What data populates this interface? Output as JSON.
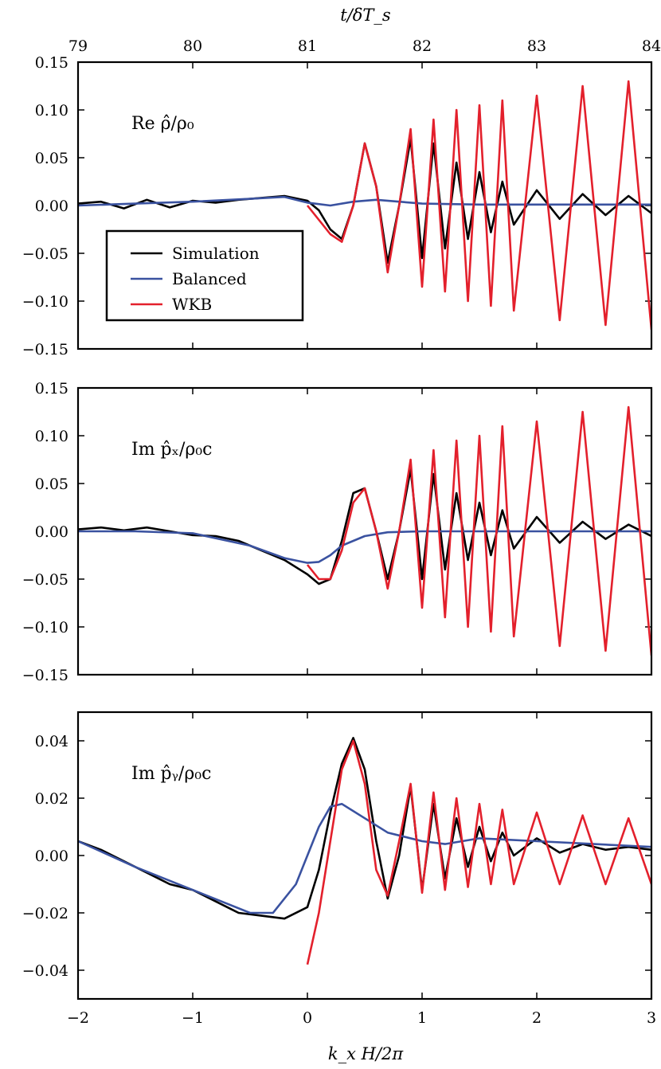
{
  "figure": {
    "top_axis_label": "t/δT_s",
    "bottom_axis_label": "k_x H/2π"
  },
  "chart_data": [
    {
      "type": "line",
      "panel_label": "Re ρ̂/ρ₀",
      "x_ticks": [
        "−2",
        "−1",
        "0",
        "1",
        "2",
        "3"
      ],
      "x_tick_values": [
        -2,
        -1,
        0,
        1,
        2,
        3
      ],
      "top_x_ticks": [
        "79",
        "80",
        "81",
        "82",
        "83",
        "84"
      ],
      "top_x_tick_values": [
        79,
        80,
        81,
        82,
        83,
        84
      ],
      "y_ticks": [
        "0.15",
        "0.10",
        "0.05",
        "0.00",
        "−0.05",
        "−0.10",
        "−0.15"
      ],
      "y_tick_values": [
        0.15,
        0.1,
        0.05,
        0.0,
        -0.05,
        -0.1,
        -0.15
      ],
      "xlim": [
        -2,
        3
      ],
      "ylim": [
        -0.15,
        0.15
      ],
      "legend": {
        "placement": "left",
        "entries": [
          {
            "label": "Simulation",
            "color": "#000000"
          },
          {
            "label": "Balanced",
            "color": "#3a52a0"
          },
          {
            "label": "WKB",
            "color": "#e3202c"
          }
        ]
      },
      "series": [
        {
          "name": "Simulation",
          "color": "#000000",
          "x": [
            -2.0,
            -1.8,
            -1.6,
            -1.4,
            -1.2,
            -1.0,
            -0.8,
            -0.6,
            -0.4,
            -0.2,
            0.0,
            0.1,
            0.2,
            0.3,
            0.4,
            0.5,
            0.6,
            0.7,
            0.8,
            0.9,
            1.0,
            1.1,
            1.2,
            1.3,
            1.4,
            1.5,
            1.6,
            1.7,
            1.8,
            2.0,
            2.2,
            2.4,
            2.6,
            2.8,
            3.0
          ],
          "y": [
            0.002,
            0.004,
            -0.003,
            0.006,
            -0.002,
            0.005,
            0.003,
            0.006,
            0.008,
            0.01,
            0.005,
            -0.005,
            -0.025,
            -0.035,
            0.0,
            0.065,
            0.02,
            -0.06,
            0.0,
            0.07,
            -0.055,
            0.065,
            -0.045,
            0.045,
            -0.035,
            0.035,
            -0.028,
            0.025,
            -0.02,
            0.016,
            -0.014,
            0.012,
            -0.01,
            0.01,
            -0.008
          ]
        },
        {
          "name": "Balanced",
          "color": "#3a52a0",
          "x": [
            -2.0,
            -1.5,
            -1.0,
            -0.5,
            -0.2,
            0.0,
            0.2,
            0.4,
            0.6,
            0.8,
            1.0,
            1.5,
            2.0,
            2.5,
            3.0
          ],
          "y": [
            0.0,
            0.002,
            0.004,
            0.007,
            0.009,
            0.003,
            0.0,
            0.004,
            0.006,
            0.004,
            0.002,
            0.001,
            0.001,
            0.001,
            0.001
          ]
        },
        {
          "name": "WKB",
          "color": "#e3202c",
          "x": [
            0.0,
            0.1,
            0.2,
            0.3,
            0.4,
            0.5,
            0.6,
            0.7,
            0.8,
            0.9,
            1.0,
            1.1,
            1.2,
            1.3,
            1.4,
            1.5,
            1.6,
            1.7,
            1.8,
            2.0,
            2.2,
            2.4,
            2.6,
            2.8,
            3.0
          ],
          "y": [
            0.0,
            -0.015,
            -0.03,
            -0.038,
            0.0,
            0.065,
            0.02,
            -0.07,
            0.0,
            0.08,
            -0.085,
            0.09,
            -0.09,
            0.1,
            -0.1,
            0.105,
            -0.105,
            0.11,
            -0.11,
            0.115,
            -0.12,
            0.125,
            -0.125,
            0.13,
            -0.13
          ]
        }
      ]
    },
    {
      "type": "line",
      "panel_label": "Im p̂ₓ/ρ₀c",
      "x_ticks": [
        "−2",
        "−1",
        "0",
        "1",
        "2",
        "3"
      ],
      "x_tick_values": [
        -2,
        -1,
        0,
        1,
        2,
        3
      ],
      "y_ticks": [
        "0.15",
        "0.10",
        "0.05",
        "0.00",
        "−0.05",
        "−0.10",
        "−0.15"
      ],
      "y_tick_values": [
        0.15,
        0.1,
        0.05,
        0.0,
        -0.05,
        -0.1,
        -0.15
      ],
      "xlim": [
        -2,
        3
      ],
      "ylim": [
        -0.15,
        0.15
      ],
      "series": [
        {
          "name": "Simulation",
          "color": "#000000",
          "x": [
            -2.0,
            -1.8,
            -1.6,
            -1.4,
            -1.2,
            -1.0,
            -0.8,
            -0.6,
            -0.4,
            -0.2,
            0.0,
            0.1,
            0.2,
            0.3,
            0.4,
            0.5,
            0.6,
            0.7,
            0.8,
            0.9,
            1.0,
            1.1,
            1.2,
            1.3,
            1.4,
            1.5,
            1.6,
            1.7,
            1.8,
            2.0,
            2.2,
            2.4,
            2.6,
            2.8,
            3.0
          ],
          "y": [
            0.002,
            0.004,
            0.001,
            0.004,
            0.0,
            -0.004,
            -0.005,
            -0.01,
            -0.02,
            -0.03,
            -0.045,
            -0.055,
            -0.05,
            -0.01,
            0.04,
            0.045,
            0.0,
            -0.05,
            0.0,
            0.065,
            -0.05,
            0.06,
            -0.04,
            0.04,
            -0.03,
            0.03,
            -0.025,
            0.022,
            -0.018,
            0.015,
            -0.012,
            0.01,
            -0.008,
            0.007,
            -0.005
          ]
        },
        {
          "name": "Balanced",
          "color": "#3a52a0",
          "x": [
            -2.0,
            -1.5,
            -1.0,
            -0.5,
            -0.2,
            0.0,
            0.1,
            0.2,
            0.3,
            0.5,
            0.7,
            1.0,
            1.5,
            2.0,
            3.0
          ],
          "y": [
            0.0,
            0.0,
            -0.002,
            -0.015,
            -0.028,
            -0.033,
            -0.032,
            -0.025,
            -0.015,
            -0.005,
            -0.001,
            0.0,
            0.0,
            0.0,
            0.0
          ]
        },
        {
          "name": "WKB",
          "color": "#e3202c",
          "x": [
            0.0,
            0.1,
            0.2,
            0.3,
            0.4,
            0.5,
            0.6,
            0.7,
            0.8,
            0.9,
            1.0,
            1.1,
            1.2,
            1.3,
            1.4,
            1.5,
            1.6,
            1.7,
            1.8,
            2.0,
            2.2,
            2.4,
            2.6,
            2.8,
            3.0
          ],
          "y": [
            -0.035,
            -0.05,
            -0.05,
            -0.02,
            0.03,
            0.045,
            0.0,
            -0.06,
            0.0,
            0.075,
            -0.08,
            0.085,
            -0.09,
            0.095,
            -0.1,
            0.1,
            -0.105,
            0.11,
            -0.11,
            0.115,
            -0.12,
            0.125,
            -0.125,
            0.13,
            -0.13
          ]
        }
      ]
    },
    {
      "type": "line",
      "panel_label": "Im p̂ᵧ/ρ₀c",
      "x_ticks": [
        "−2",
        "−1",
        "0",
        "1",
        "2",
        "3"
      ],
      "x_tick_values": [
        -2,
        -1,
        0,
        1,
        2,
        3
      ],
      "y_ticks": [
        "0.04",
        "0.02",
        "0.00",
        "−0.02",
        "−0.04"
      ],
      "y_tick_values": [
        0.04,
        0.02,
        0.0,
        -0.02,
        -0.04
      ],
      "xlim": [
        -2,
        3
      ],
      "ylim": [
        -0.05,
        0.05
      ],
      "series": [
        {
          "name": "Simulation",
          "color": "#000000",
          "x": [
            -2.0,
            -1.8,
            -1.6,
            -1.4,
            -1.2,
            -1.0,
            -0.8,
            -0.6,
            -0.4,
            -0.2,
            0.0,
            0.1,
            0.2,
            0.3,
            0.4,
            0.5,
            0.6,
            0.7,
            0.8,
            0.9,
            1.0,
            1.1,
            1.2,
            1.3,
            1.4,
            1.5,
            1.6,
            1.7,
            1.8,
            2.0,
            2.2,
            2.4,
            2.6,
            2.8,
            3.0
          ],
          "y": [
            0.005,
            0.002,
            -0.002,
            -0.006,
            -0.01,
            -0.012,
            -0.016,
            -0.02,
            -0.021,
            -0.022,
            -0.018,
            -0.005,
            0.015,
            0.032,
            0.041,
            0.03,
            0.005,
            -0.015,
            0.0,
            0.024,
            -0.012,
            0.018,
            -0.008,
            0.013,
            -0.004,
            0.01,
            -0.002,
            0.008,
            0.0,
            0.006,
            0.001,
            0.004,
            0.002,
            0.003,
            0.002
          ]
        },
        {
          "name": "Balanced",
          "color": "#3a52a0",
          "x": [
            -2.0,
            -1.5,
            -1.0,
            -0.5,
            -0.3,
            -0.1,
            0.0,
            0.1,
            0.2,
            0.3,
            0.5,
            0.7,
            1.0,
            1.2,
            1.5,
            2.0,
            2.5,
            3.0
          ],
          "y": [
            0.005,
            -0.004,
            -0.012,
            -0.02,
            -0.02,
            -0.01,
            0.0,
            0.01,
            0.017,
            0.018,
            0.013,
            0.008,
            0.005,
            0.004,
            0.006,
            0.005,
            0.004,
            0.003
          ]
        },
        {
          "name": "WKB",
          "color": "#e3202c",
          "x": [
            0.0,
            0.1,
            0.2,
            0.3,
            0.4,
            0.5,
            0.6,
            0.7,
            0.8,
            0.9,
            1.0,
            1.1,
            1.2,
            1.3,
            1.4,
            1.5,
            1.6,
            1.7,
            1.8,
            2.0,
            2.2,
            2.4,
            2.6,
            2.8,
            3.0
          ],
          "y": [
            -0.038,
            -0.02,
            0.005,
            0.03,
            0.04,
            0.025,
            -0.005,
            -0.014,
            0.005,
            0.025,
            -0.013,
            0.022,
            -0.012,
            0.02,
            -0.011,
            0.018,
            -0.01,
            0.016,
            -0.01,
            0.015,
            -0.01,
            0.014,
            -0.01,
            0.013,
            -0.01
          ]
        }
      ]
    }
  ]
}
